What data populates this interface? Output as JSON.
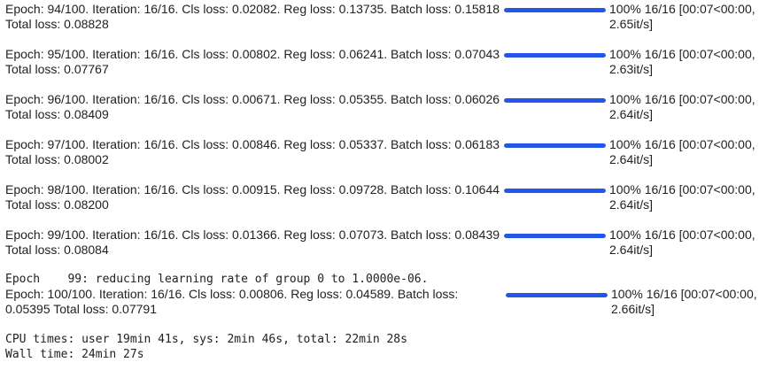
{
  "rows": [
    {
      "desc": "Epoch: 94/100. Iteration: 16/16. Cls loss: 0.02082. Reg loss: 0.13735. Batch loss: 0.15818\nTotal loss: 0.08828",
      "progress": 1.0,
      "stat": "100% 16/16 [00:07<00:00,\n2.65it/s]"
    },
    {
      "desc": "Epoch: 95/100. Iteration: 16/16. Cls loss: 0.00802. Reg loss: 0.06241. Batch loss: 0.07043\nTotal loss: 0.07767",
      "progress": 1.0,
      "stat": "100% 16/16 [00:07<00:00,\n2.63it/s]"
    },
    {
      "desc": "Epoch: 96/100. Iteration: 16/16. Cls loss: 0.00671. Reg loss: 0.05355. Batch loss: 0.06026\nTotal loss: 0.08409",
      "progress": 1.0,
      "stat": "100% 16/16 [00:07<00:00,\n2.64it/s]"
    },
    {
      "desc": "Epoch: 97/100. Iteration: 16/16. Cls loss: 0.00846. Reg loss: 0.05337. Batch loss: 0.06183\nTotal loss: 0.08002",
      "progress": 1.0,
      "stat": "100% 16/16 [00:07<00:00,\n2.64it/s]"
    },
    {
      "desc": "Epoch: 98/100. Iteration: 16/16. Cls loss: 0.00915. Reg loss: 0.09728. Batch loss: 0.10644\nTotal loss: 0.08200",
      "progress": 1.0,
      "stat": "100% 16/16 [00:07<00:00,\n2.64it/s]"
    },
    {
      "desc": "Epoch: 99/100. Iteration: 16/16. Cls loss: 0.01366. Reg loss: 0.07073. Batch loss: 0.08439\nTotal loss: 0.08084",
      "progress": 1.0,
      "stat": "100% 16/16 [00:07<00:00,\n2.64it/s]"
    }
  ],
  "lr_message": "Epoch    99: reducing learning rate of group 0 to 1.0000e-06.",
  "last_row": {
    "desc": "Epoch: 100/100. Iteration: 16/16. Cls loss: 0.00806. Reg loss: 0.04589. Batch loss:\n0.05395 Total loss: 0.07791",
    "progress": 1.0,
    "stat": "100% 16/16 [00:07<00:00,\n2.66it/s]"
  },
  "cpu_times": "CPU times: user 19min 41s, sys: 2min 46s, total: 22min 28s",
  "wall_time": "Wall time: 24min 27s",
  "colors": {
    "bar": "#2457e8",
    "track": "#e0e0e0",
    "text": "#212121"
  }
}
